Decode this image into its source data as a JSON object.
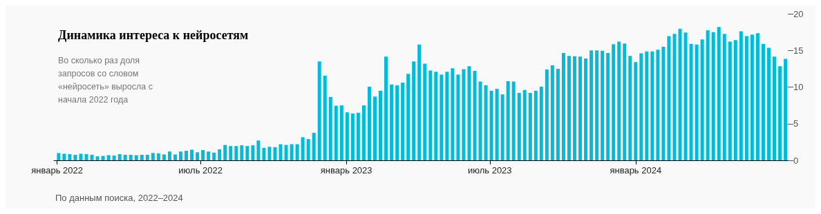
{
  "chart_data": {
    "type": "bar",
    "title": "Динамика интереса к нейросетям",
    "subtitle": "Во сколько раз доля запросов со словом «нейросеть» выросла с начала 2022 года",
    "annotations": [
      "По данным поиска, 2022–2024"
    ],
    "x": [
      "2022-01-03",
      "2022-01-10",
      "2022-01-17",
      "2022-01-24",
      "2022-01-31",
      "2022-02-07",
      "2022-02-14",
      "2022-02-21",
      "2022-02-28",
      "2022-03-07",
      "2022-03-14",
      "2022-03-21",
      "2022-03-28",
      "2022-04-04",
      "2022-04-11",
      "2022-04-18",
      "2022-04-25",
      "2022-05-02",
      "2022-05-09",
      "2022-05-16",
      "2022-05-23",
      "2022-05-30",
      "2022-06-06",
      "2022-06-13",
      "2022-06-20",
      "2022-06-27",
      "2022-07-04",
      "2022-07-11",
      "2022-07-18",
      "2022-07-25",
      "2022-08-01",
      "2022-08-08",
      "2022-08-15",
      "2022-08-22",
      "2022-08-29",
      "2022-09-05",
      "2022-09-12",
      "2022-09-19",
      "2022-09-26",
      "2022-10-03",
      "2022-10-10",
      "2022-10-17",
      "2022-10-24",
      "2022-10-31",
      "2022-11-07",
      "2022-11-14",
      "2022-11-21",
      "2022-11-28",
      "2022-12-05",
      "2022-12-12",
      "2022-12-19",
      "2022-12-26",
      "2023-01-02",
      "2023-01-09",
      "2023-01-16",
      "2023-01-23",
      "2023-01-30",
      "2023-02-06",
      "2023-02-13",
      "2023-02-20",
      "2023-02-27",
      "2023-03-06",
      "2023-03-13",
      "2023-03-20",
      "2023-03-27",
      "2023-04-03",
      "2023-04-10",
      "2023-04-17",
      "2023-04-24",
      "2023-05-01",
      "2023-05-08",
      "2023-05-15",
      "2023-05-22",
      "2023-05-29",
      "2023-06-05",
      "2023-06-12",
      "2023-06-19",
      "2023-06-26",
      "2023-07-03",
      "2023-07-10",
      "2023-07-17",
      "2023-07-24",
      "2023-07-31",
      "2023-08-07",
      "2023-08-14",
      "2023-08-21",
      "2023-08-28",
      "2023-09-04",
      "2023-09-11",
      "2023-09-18",
      "2023-09-25",
      "2023-10-02",
      "2023-10-09",
      "2023-10-16",
      "2023-10-23",
      "2023-10-30",
      "2023-11-06",
      "2023-11-13",
      "2023-11-20",
      "2023-11-27",
      "2023-12-04",
      "2023-12-11",
      "2023-12-18",
      "2023-12-25",
      "2024-01-01",
      "2024-01-08",
      "2024-01-15",
      "2024-01-22",
      "2024-01-29",
      "2024-02-05",
      "2024-02-12",
      "2024-02-19",
      "2024-02-26",
      "2024-03-04",
      "2024-03-11",
      "2024-03-18",
      "2024-03-25",
      "2024-04-01",
      "2024-04-08",
      "2024-04-15",
      "2024-04-22",
      "2024-04-29",
      "2024-05-06",
      "2024-05-13",
      "2024-05-20",
      "2024-05-27",
      "2024-06-03",
      "2024-06-10",
      "2024-06-17",
      "2024-06-24",
      "2024-07-01",
      "2024-07-08"
    ],
    "values": [
      1.0,
      0.9,
      0.85,
      0.75,
      0.9,
      0.85,
      0.75,
      0.55,
      0.6,
      0.7,
      0.65,
      0.85,
      0.75,
      0.75,
      0.7,
      0.75,
      0.75,
      1.0,
      0.95,
      0.8,
      1.2,
      0.8,
      1.2,
      1.3,
      1.45,
      1.1,
      1.4,
      1.2,
      1.05,
      1.5,
      2.1,
      1.95,
      1.95,
      2.05,
      1.95,
      2.05,
      2.7,
      1.7,
      1.85,
      1.8,
      2.2,
      2.1,
      2.2,
      2.2,
      3.15,
      2.9,
      3.75,
      13.5,
      11.55,
      8.65,
      7.45,
      7.5,
      6.55,
      6.4,
      6.5,
      7.5,
      10.05,
      8.7,
      9.5,
      14.15,
      10.35,
      10.25,
      10.6,
      11.8,
      13.5,
      15.8,
      13.2,
      12.25,
      12.1,
      11.7,
      12.1,
      12.55,
      11.7,
      12.45,
      12.85,
      12.2,
      10.75,
      10.25,
      9.5,
      9.75,
      9.0,
      10.8,
      10.75,
      9.2,
      9.6,
      9.2,
      9.5,
      10.05,
      12.4,
      12.95,
      12.5,
      14.65,
      14.25,
      14.2,
      14.15,
      13.9,
      15.0,
      15.0,
      14.95,
      14.65,
      15.85,
      16.2,
      15.95,
      14.25,
      13.4,
      14.6,
      14.85,
      14.85,
      15.1,
      15.5,
      16.95,
      17.25,
      17.95,
      17.45,
      15.9,
      15.8,
      16.5,
      17.75,
      17.5,
      18.2,
      17.25,
      16.2,
      16.4,
      17.6,
      16.95,
      17.15,
      17.35,
      15.9,
      15.35,
      14.15,
      12.85,
      13.85
    ],
    "color": "#00bcd9",
    "xlim": [
      "2021-12-28",
      "2024-07-11"
    ],
    "xticks": [
      {
        "value": "2022-01-01",
        "label": "январь 2022"
      },
      {
        "value": "2022-07-01",
        "label": "июль 2022"
      },
      {
        "value": "2023-01-01",
        "label": "январь 2023"
      },
      {
        "value": "2023-07-01",
        "label": "июль 2023"
      },
      {
        "value": "2024-01-01",
        "label": "январь 2024"
      }
    ],
    "ylim": [
      0,
      20
    ],
    "yticks": [
      0,
      5,
      10,
      15,
      20
    ],
    "grid": false
  }
}
